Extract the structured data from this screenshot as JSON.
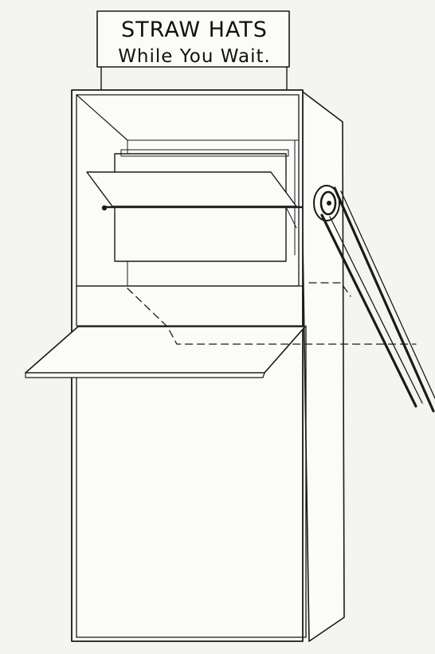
{
  "sign": {
    "line1": "STRAW HATS",
    "line2": "While You Wait."
  },
  "colors": {
    "ink": "#1a1a1a",
    "paper": "#f4f4f1"
  }
}
